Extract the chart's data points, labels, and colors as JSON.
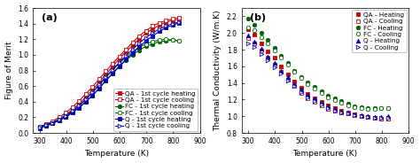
{
  "panel_a": {
    "title": "(a)",
    "xlabel": "Temperature (K)",
    "ylabel": "Figure of Merit",
    "xlim": [
      275,
      900
    ],
    "ylim": [
      0,
      1.6
    ],
    "xticks": [
      300,
      400,
      500,
      600,
      700,
      800,
      900
    ],
    "yticks": [
      0.0,
      0.2,
      0.4,
      0.6,
      0.8,
      1.0,
      1.2,
      1.4,
      1.6
    ],
    "series": {
      "QA_heating": {
        "T": [
          300,
          323,
          348,
          373,
          398,
          423,
          448,
          473,
          498,
          523,
          548,
          573,
          598,
          623,
          648,
          673,
          698,
          723,
          748,
          773,
          798,
          823
        ],
        "ZT": [
          0.07,
          0.1,
          0.13,
          0.18,
          0.23,
          0.3,
          0.37,
          0.46,
          0.55,
          0.65,
          0.75,
          0.85,
          0.95,
          1.04,
          1.12,
          1.2,
          1.28,
          1.33,
          1.38,
          1.42,
          1.44,
          1.46
        ],
        "color": "#cc0000",
        "marker": "s",
        "filled": true
      },
      "QA_cooling": {
        "T": [
          300,
          323,
          348,
          373,
          398,
          423,
          448,
          473,
          498,
          523,
          548,
          573,
          598,
          623,
          648,
          673,
          698,
          723,
          748,
          773,
          798,
          823
        ],
        "ZT": [
          0.08,
          0.11,
          0.15,
          0.2,
          0.26,
          0.33,
          0.41,
          0.5,
          0.59,
          0.69,
          0.79,
          0.89,
          0.98,
          1.07,
          1.16,
          1.24,
          1.31,
          1.37,
          1.41,
          1.44,
          1.46,
          1.48
        ],
        "color": "#cc0000",
        "marker": "s",
        "filled": false
      },
      "FC_heating": {
        "T": [
          300,
          323,
          348,
          373,
          398,
          423,
          448,
          473,
          498,
          523,
          548,
          573,
          598,
          623,
          648,
          673,
          698,
          723,
          748,
          773,
          798,
          823
        ],
        "ZT": [
          0.07,
          0.09,
          0.12,
          0.16,
          0.21,
          0.27,
          0.33,
          0.4,
          0.48,
          0.57,
          0.67,
          0.76,
          0.85,
          0.93,
          1.0,
          1.06,
          1.11,
          1.14,
          1.17,
          1.18,
          1.19,
          1.18
        ],
        "color": "#006600",
        "marker": "o",
        "filled": true
      },
      "FC_cooling": {
        "T": [
          300,
          323,
          348,
          373,
          398,
          423,
          448,
          473,
          498,
          523,
          548,
          573,
          598,
          623,
          648,
          673,
          698,
          723,
          748,
          773,
          798,
          823
        ],
        "ZT": [
          0.08,
          0.1,
          0.13,
          0.17,
          0.22,
          0.28,
          0.35,
          0.43,
          0.52,
          0.61,
          0.71,
          0.8,
          0.89,
          0.97,
          1.04,
          1.1,
          1.14,
          1.17,
          1.19,
          1.2,
          1.19,
          1.18
        ],
        "color": "#006600",
        "marker": "o",
        "filled": false
      },
      "Q_heating": {
        "T": [
          300,
          323,
          348,
          373,
          398,
          423,
          448,
          473,
          498,
          523,
          548,
          573,
          598,
          623,
          648,
          673,
          698,
          723,
          748,
          773,
          798,
          823
        ],
        "ZT": [
          0.06,
          0.09,
          0.12,
          0.16,
          0.2,
          0.26,
          0.32,
          0.4,
          0.48,
          0.57,
          0.67,
          0.76,
          0.85,
          0.94,
          1.02,
          1.1,
          1.18,
          1.24,
          1.3,
          1.35,
          1.38,
          1.41
        ],
        "color": "#0000bb",
        "marker": "s",
        "filled": true
      },
      "Q_cooling": {
        "T": [
          300,
          323,
          348,
          373,
          398,
          423,
          448,
          473,
          498,
          523,
          548,
          573,
          598,
          623,
          648,
          673,
          698,
          723,
          748,
          773,
          798,
          823
        ],
        "ZT": [
          0.07,
          0.1,
          0.13,
          0.17,
          0.22,
          0.28,
          0.35,
          0.43,
          0.52,
          0.62,
          0.72,
          0.81,
          0.9,
          0.99,
          1.07,
          1.15,
          1.22,
          1.28,
          1.33,
          1.37,
          1.4,
          1.42
        ],
        "color": "#0000bb",
        "marker": ">",
        "filled": false
      }
    },
    "legend_labels": [
      "QA - 1st cycle heating",
      "QA - 1st cycle cooling",
      "FC - 1st cycle heating",
      "FC - 1st cycle cooling",
      "Q - 1st cycle heating",
      "Q - 1st cycle cooling"
    ],
    "legend_markers": [
      "s",
      "s",
      "o",
      "o",
      "s",
      ">"
    ],
    "legend_filled": [
      true,
      false,
      true,
      false,
      true,
      false
    ],
    "legend_colors": [
      "#cc0000",
      "#cc0000",
      "#006600",
      "#006600",
      "#0000bb",
      "#0000bb"
    ]
  },
  "panel_b": {
    "title": "(b)",
    "xlabel": "Temperature (K)",
    "ylabel": "Thermal Conductivity (W/m.K)",
    "xlim": [
      275,
      900
    ],
    "ylim": [
      0.8,
      2.3
    ],
    "xticks": [
      300,
      400,
      500,
      600,
      700,
      800,
      900
    ],
    "yticks": [
      0.8,
      1.0,
      1.2,
      1.4,
      1.6,
      1.8,
      2.0,
      2.2
    ],
    "series": {
      "QA_heating": {
        "T": [
          300,
          323,
          348,
          373,
          398,
          423,
          448,
          473,
          498,
          523,
          548,
          573,
          598,
          623,
          648,
          673,
          698,
          723,
          748,
          773,
          798,
          823
        ],
        "kappa": [
          2.05,
          1.98,
          1.88,
          1.78,
          1.7,
          1.6,
          1.5,
          1.42,
          1.34,
          1.27,
          1.21,
          1.17,
          1.13,
          1.1,
          1.07,
          1.04,
          1.02,
          1.0,
          0.99,
          0.98,
          0.97,
          0.97
        ],
        "color": "#cc0000",
        "marker": "s",
        "filled": true
      },
      "QA_cooling": {
        "T": [
          300,
          323,
          348,
          373,
          398,
          423,
          448,
          473,
          498,
          523,
          548,
          573,
          598,
          623,
          648,
          673,
          698,
          723,
          748,
          773,
          798,
          823
        ],
        "kappa": [
          1.94,
          1.88,
          1.79,
          1.7,
          1.62,
          1.53,
          1.44,
          1.36,
          1.28,
          1.22,
          1.17,
          1.13,
          1.09,
          1.07,
          1.05,
          1.03,
          1.01,
          1.0,
          0.99,
          0.98,
          0.97,
          0.97
        ],
        "color": "#cc0000",
        "marker": "s",
        "filled": false
      },
      "FC_heating": {
        "T": [
          300,
          323,
          348,
          373,
          398,
          423,
          448,
          473,
          498,
          523,
          548,
          573,
          598,
          623,
          648,
          673,
          698,
          723,
          748,
          773,
          798,
          823
        ],
        "kappa": [
          2.17,
          2.1,
          2.0,
          1.92,
          1.82,
          1.73,
          1.64,
          1.55,
          1.47,
          1.41,
          1.35,
          1.3,
          1.25,
          1.21,
          1.18,
          1.15,
          1.12,
          1.11,
          1.1,
          1.1,
          1.1,
          1.1
        ],
        "color": "#006600",
        "marker": "o",
        "filled": true
      },
      "FC_cooling": {
        "T": [
          300,
          323,
          348,
          373,
          398,
          423,
          448,
          473,
          498,
          523,
          548,
          573,
          598,
          623,
          648,
          673,
          698,
          723,
          748,
          773,
          798,
          823
        ],
        "kappa": [
          2.07,
          2.03,
          1.95,
          1.88,
          1.79,
          1.7,
          1.62,
          1.53,
          1.46,
          1.39,
          1.33,
          1.28,
          1.23,
          1.19,
          1.16,
          1.13,
          1.11,
          1.1,
          1.09,
          1.09,
          1.1,
          1.1
        ],
        "color": "#006600",
        "marker": "o",
        "filled": false
      },
      "Q_heating": {
        "T": [
          300,
          323,
          348,
          373,
          398,
          423,
          448,
          473,
          498,
          523,
          548,
          573,
          598,
          623,
          648,
          673,
          698,
          723,
          748,
          773,
          798,
          823
        ],
        "kappa": [
          1.97,
          1.9,
          1.81,
          1.72,
          1.64,
          1.55,
          1.47,
          1.39,
          1.32,
          1.26,
          1.21,
          1.16,
          1.12,
          1.09,
          1.06,
          1.04,
          1.02,
          1.01,
          1.0,
          0.99,
          0.99,
          1.0
        ],
        "color": "#0000bb",
        "marker": "^",
        "filled": true
      },
      "Q_cooling": {
        "T": [
          300,
          323,
          348,
          373,
          398,
          423,
          448,
          473,
          498,
          523,
          548,
          573,
          598,
          623,
          648,
          673,
          698,
          723,
          748,
          773,
          798,
          823
        ],
        "kappa": [
          1.88,
          1.83,
          1.75,
          1.67,
          1.59,
          1.51,
          1.43,
          1.36,
          1.29,
          1.23,
          1.18,
          1.14,
          1.1,
          1.07,
          1.05,
          1.03,
          1.01,
          1.0,
          0.99,
          0.98,
          0.98,
          0.98
        ],
        "color": "#0000bb",
        "marker": ">",
        "filled": false
      }
    },
    "legend_labels": [
      "QA - Heating",
      "QA - Cooling",
      "FC - Heating",
      "FC - Cooling",
      "Q - Heating",
      "Q - Cooling"
    ],
    "legend_markers": [
      "s",
      "s",
      "o",
      "o",
      "^",
      ">"
    ],
    "legend_filled": [
      true,
      false,
      true,
      false,
      true,
      false
    ],
    "legend_colors": [
      "#cc0000",
      "#cc0000",
      "#006600",
      "#006600",
      "#0000bb",
      "#0000bb"
    ]
  },
  "markersize": 3.2,
  "linewidth": 0.8,
  "legend_fontsize": 5.2,
  "axis_label_fontsize": 6.5,
  "tick_fontsize": 5.5,
  "title_fontsize": 8
}
